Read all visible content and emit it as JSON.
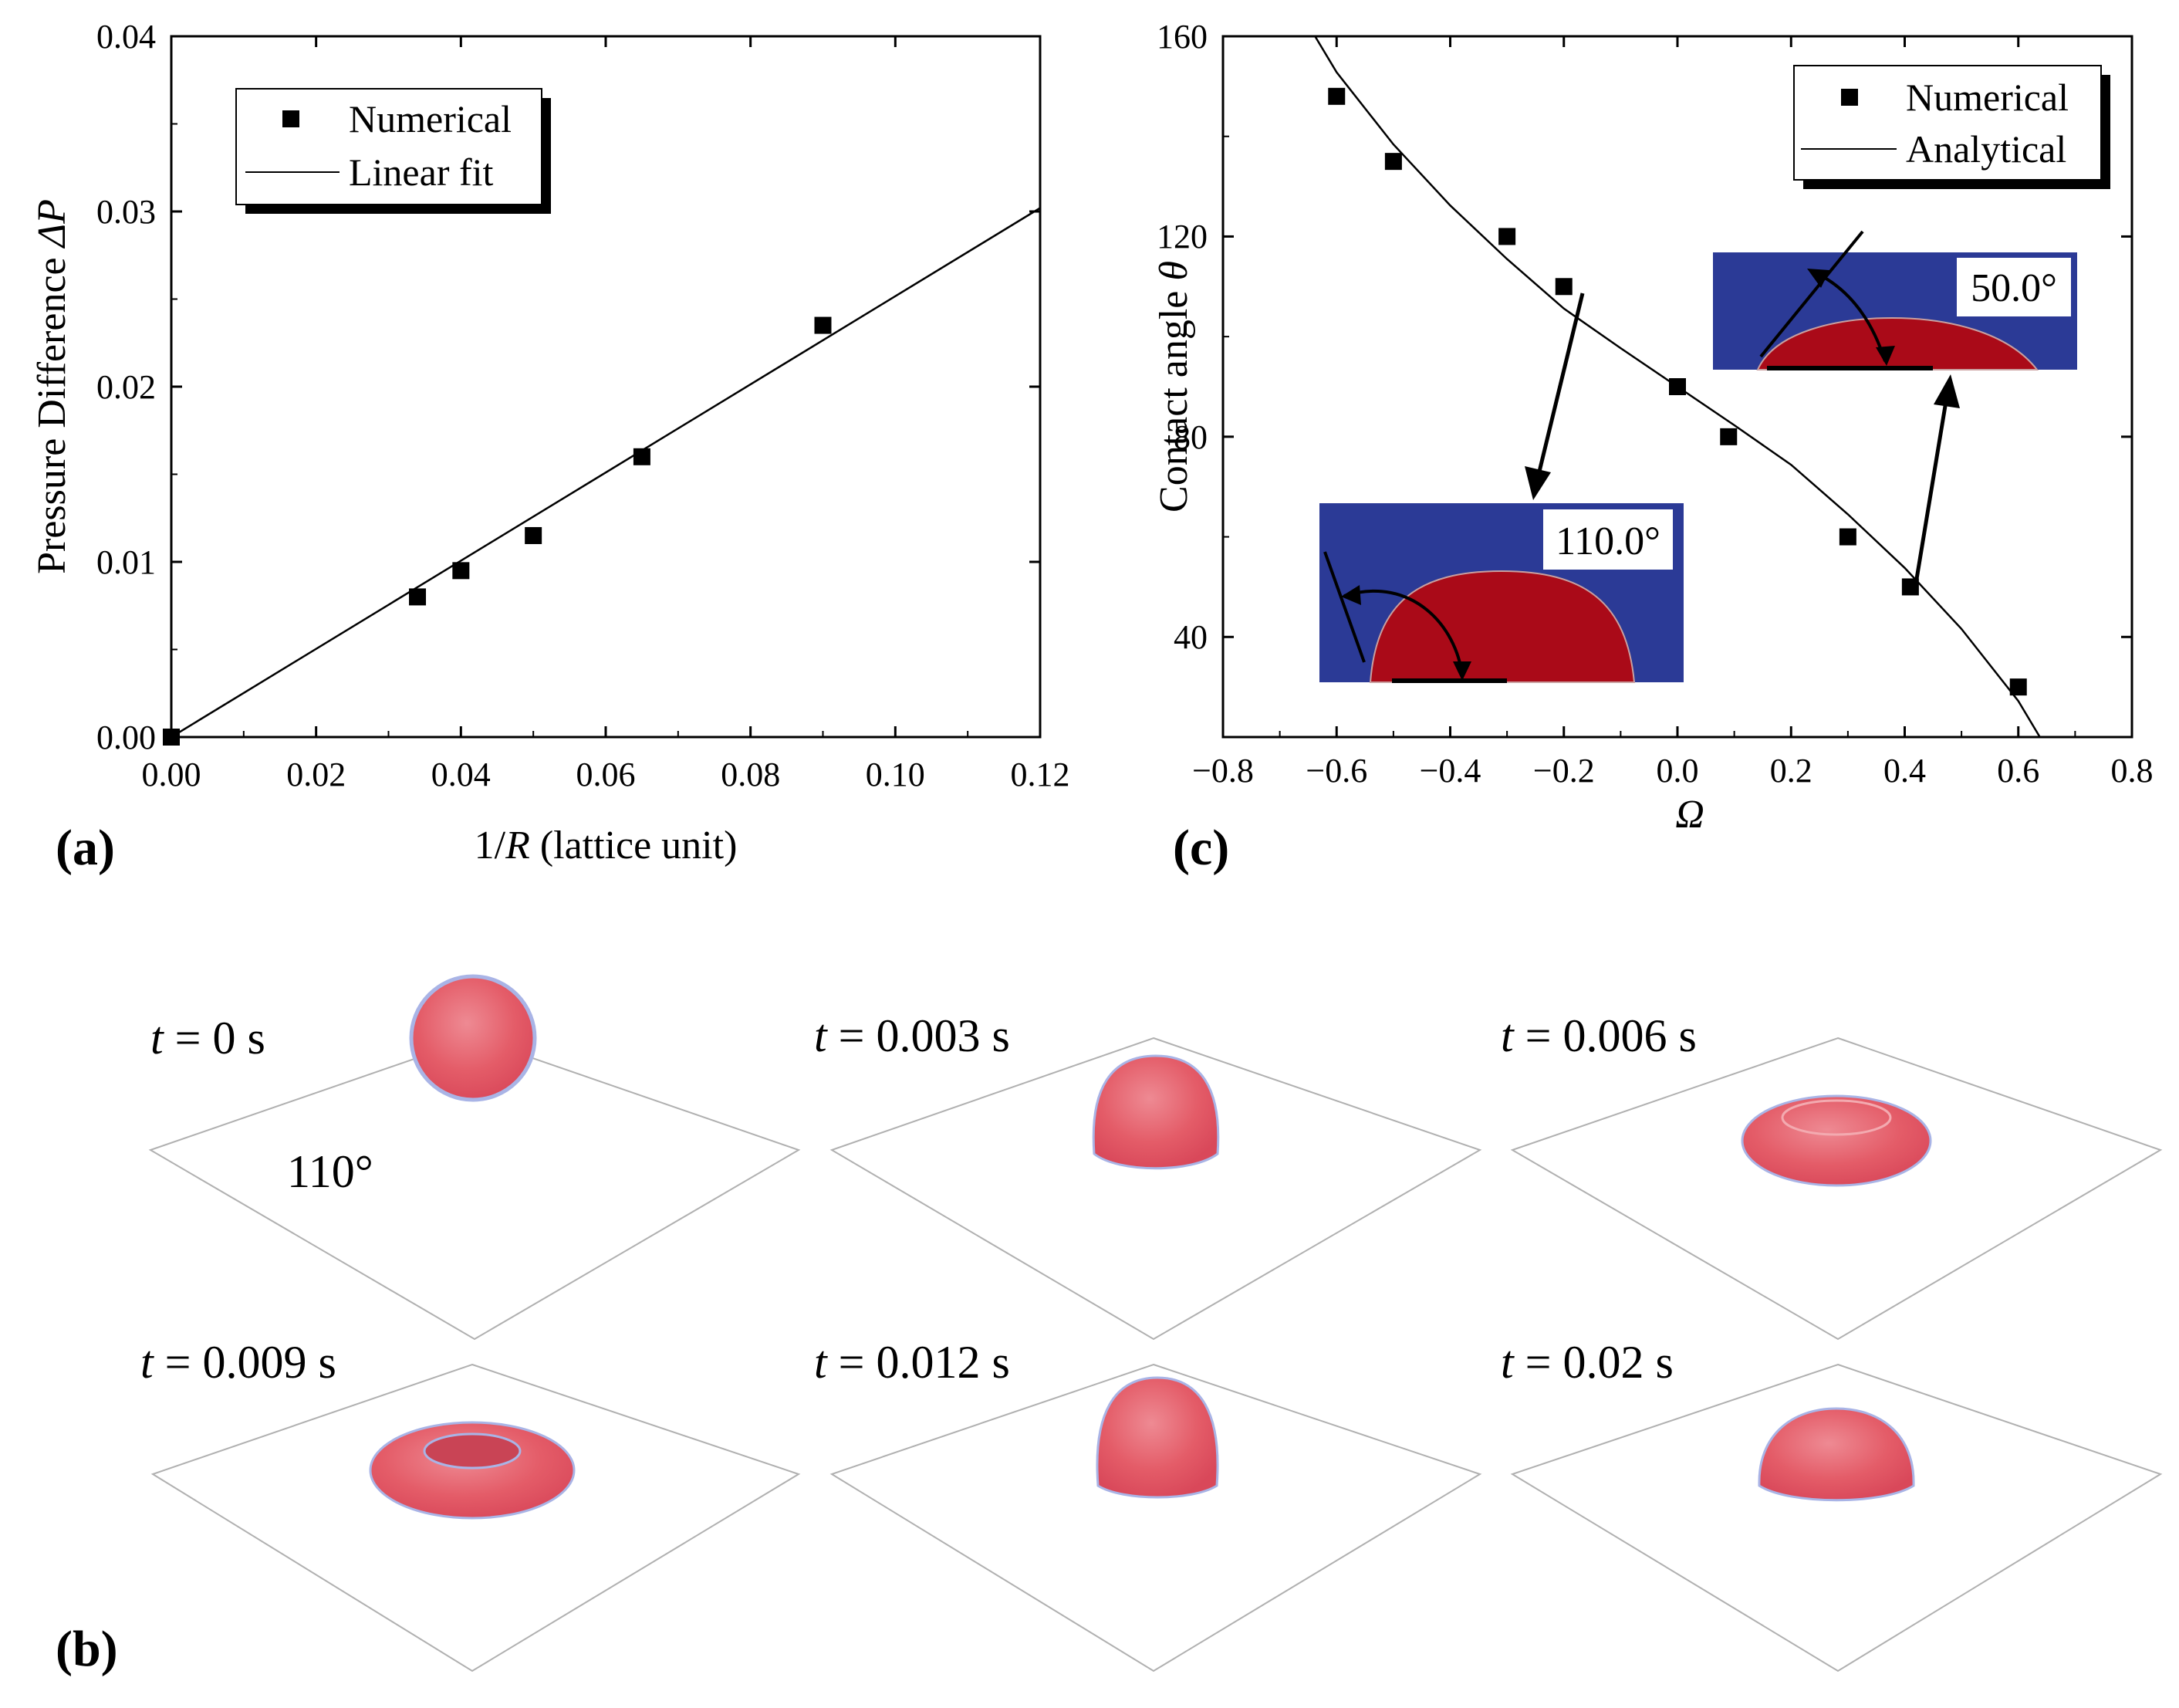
{
  "panels": {
    "a": {
      "label": "(a)"
    },
    "b": {
      "label": "(b)",
      "wetting_angle": "110°",
      "snapshots": [
        {
          "time": "0",
          "shape": "sphere"
        },
        {
          "time": "0.003",
          "shape": "spreading-dome"
        },
        {
          "time": "0.006",
          "shape": "flat-pancake"
        },
        {
          "time": "0.009",
          "shape": "torus"
        },
        {
          "time": "0.012",
          "shape": "tall-dome"
        },
        {
          "time": "0.02",
          "shape": "dome"
        }
      ],
      "time_symbol": "t",
      "time_unit": "s"
    },
    "c": {
      "label": "(c)",
      "insets": [
        {
          "angle_label": "110.0°",
          "contact_angle": 110
        },
        {
          "angle_label": "50.0°",
          "contact_angle": 50
        }
      ]
    }
  },
  "chart_data": [
    {
      "panel": "a",
      "type": "scatter",
      "xlabel_parts": [
        "1/",
        "R",
        " (lattice unit)"
      ],
      "ylabel_parts": [
        "Pressure Difference ",
        "ΔP"
      ],
      "xlim": [
        0.0,
        0.12
      ],
      "ylim": [
        0.0,
        0.04
      ],
      "xticks": [
        "0.00",
        "0.02",
        "0.04",
        "0.06",
        "0.08",
        "0.10",
        "0.12"
      ],
      "yticks": [
        "0.00",
        "0.01",
        "0.02",
        "0.03",
        "0.04"
      ],
      "legend": {
        "position": "top-left",
        "entries": [
          "Numerical",
          "Linear fit"
        ]
      },
      "series": [
        {
          "name": "Numerical",
          "kind": "markers",
          "x": [
            0.0,
            0.034,
            0.04,
            0.05,
            0.065,
            0.09
          ],
          "y": [
            0.0,
            0.008,
            0.0095,
            0.0115,
            0.016,
            0.0235
          ]
        },
        {
          "name": "Linear fit",
          "kind": "line",
          "x": [
            0.0,
            0.12
          ],
          "y": [
            0.0,
            0.0302
          ]
        }
      ]
    },
    {
      "panel": "c",
      "type": "scatter",
      "xlabel": "Ω",
      "ylabel_parts": [
        "Contact angle ",
        "θ"
      ],
      "xlim": [
        -0.8,
        0.8
      ],
      "ylim": [
        20,
        160
      ],
      "xticks": [
        "−0.8",
        "−0.6",
        "−0.4",
        "−0.2",
        "0.0",
        "0.2",
        "0.4",
        "0.6",
        "0.8"
      ],
      "yticks": [
        "40",
        "80",
        "120",
        "160"
      ],
      "legend": {
        "position": "top-right",
        "entries": [
          "Numerical",
          "Analytical"
        ]
      },
      "series": [
        {
          "name": "Numerical",
          "kind": "markers",
          "x": [
            -0.6,
            -0.5,
            -0.3,
            -0.2,
            0.0,
            0.09,
            0.3,
            0.41,
            0.6
          ],
          "y": [
            148,
            135,
            120,
            110,
            90,
            80,
            60,
            50,
            30
          ]
        },
        {
          "name": "Analytical",
          "kind": "line",
          "formula": "theta = acos(sin(acos(Omega^2)^3 / 2 ... ))",
          "x": [
            -0.638,
            -0.6,
            -0.5,
            -0.4,
            -0.3,
            -0.2,
            -0.1,
            0.0,
            0.1,
            0.2,
            0.3,
            0.4,
            0.5,
            0.6,
            0.638
          ],
          "y": [
            160.0,
            152.8,
            138.4,
            126.2,
            115.5,
            105.6,
            97.7,
            90.0,
            82.3,
            74.4,
            64.5,
            53.8,
            41.6,
            27.2,
            20.0
          ]
        }
      ]
    }
  ]
}
